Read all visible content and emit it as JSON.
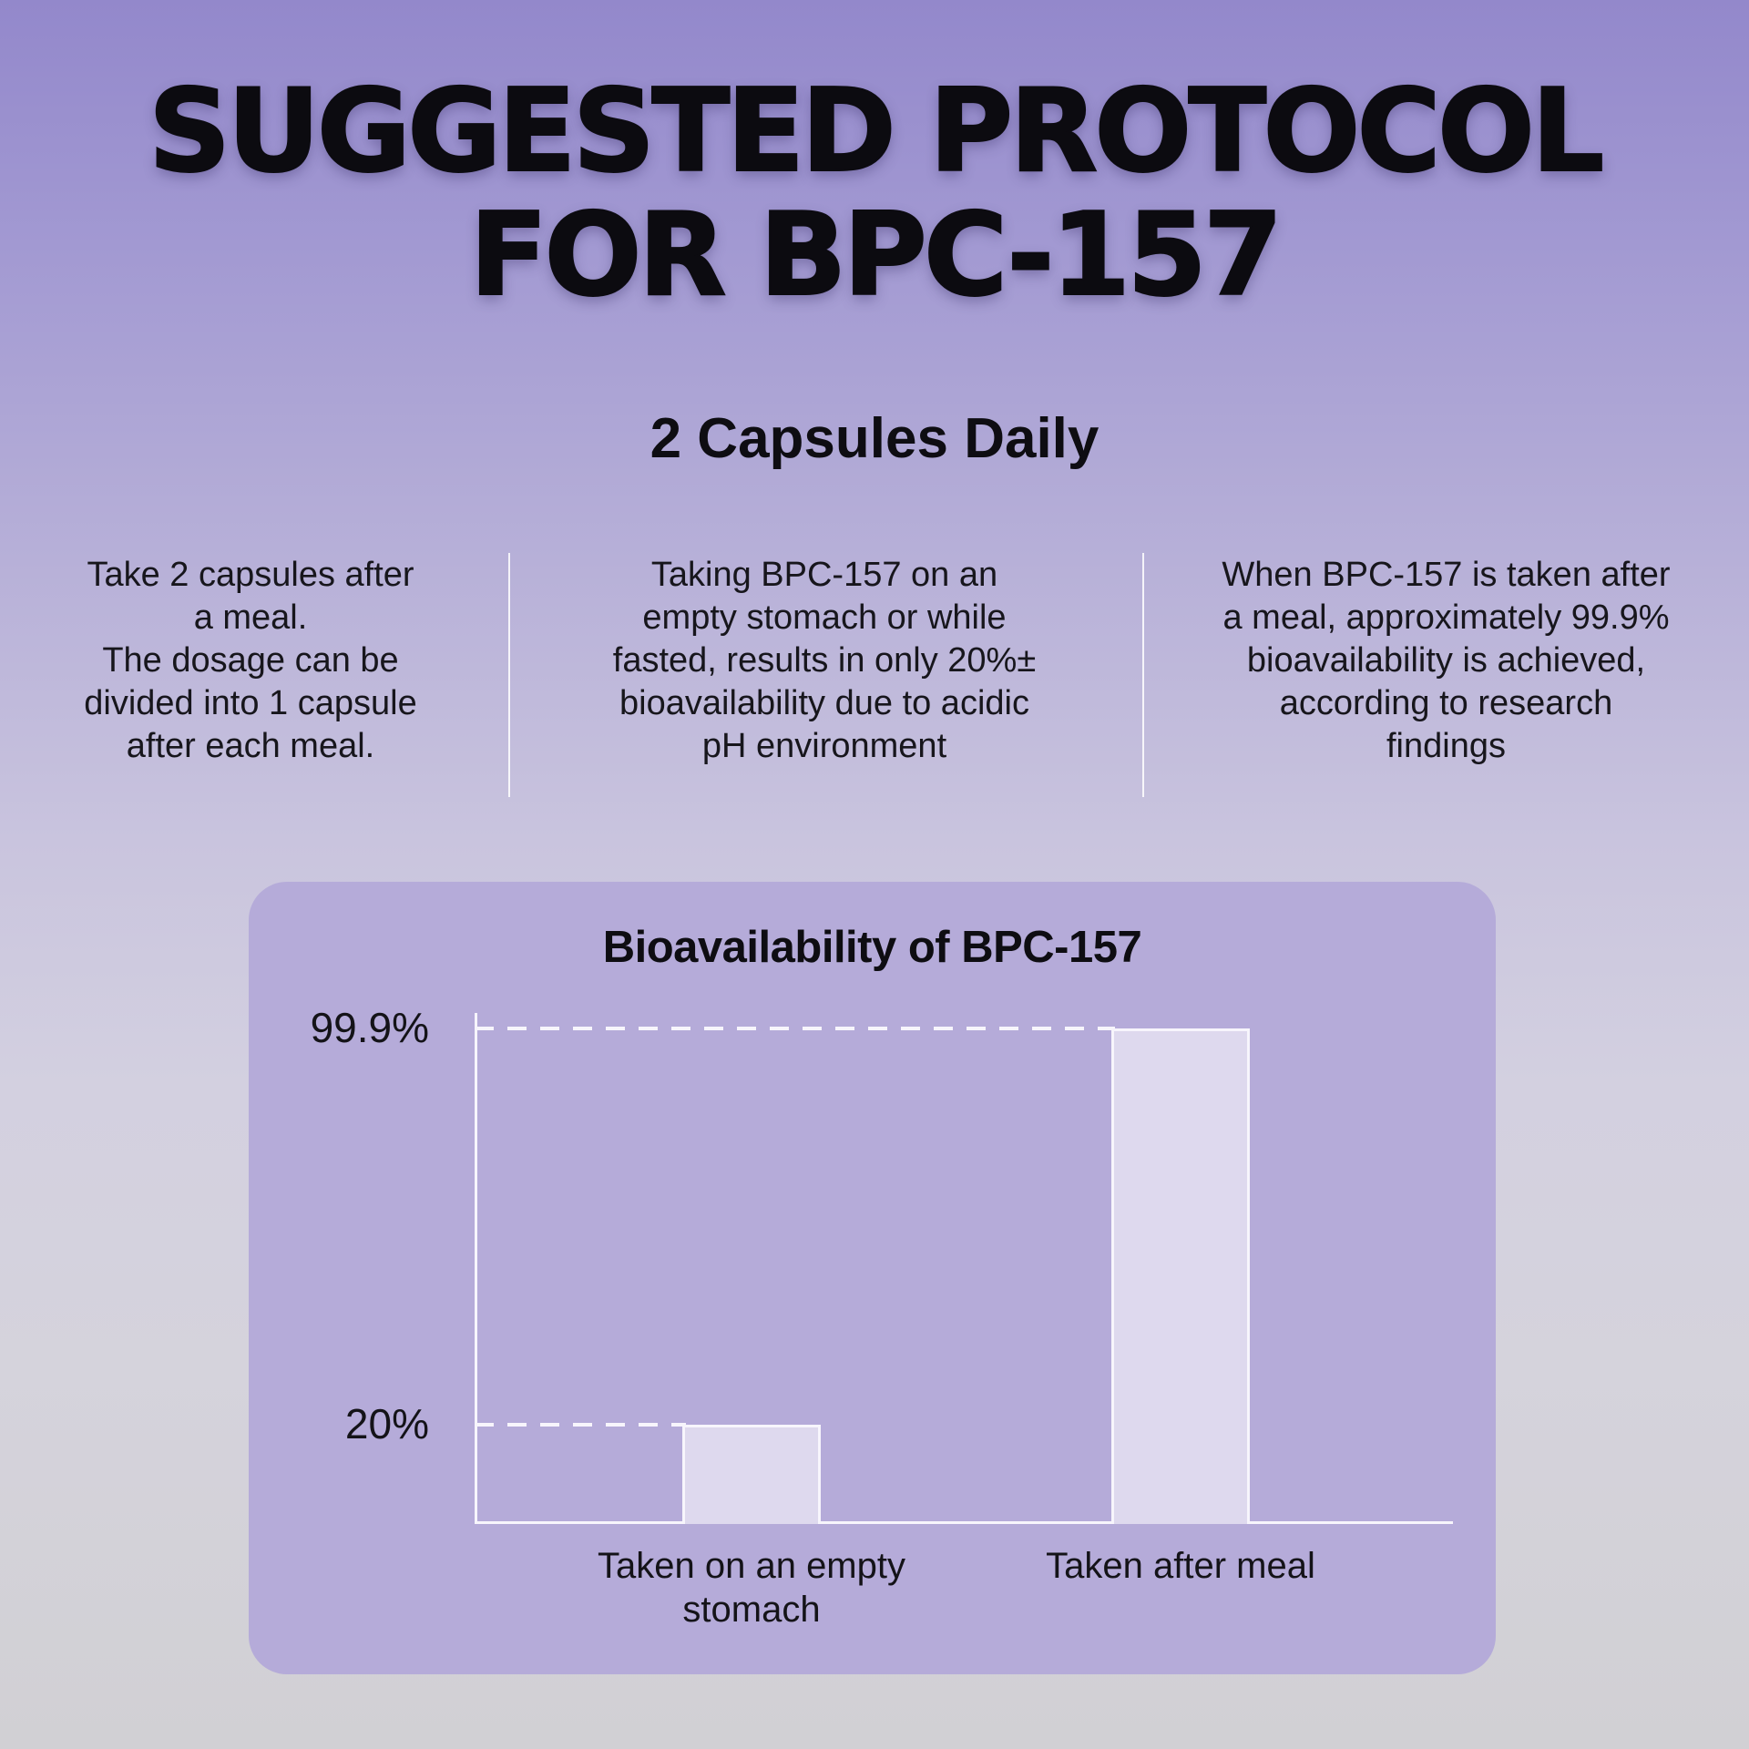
{
  "title": "SUGGESTED PROTOCOL\nFOR BPC-157",
  "subtitle": "2 Capsules Daily",
  "columns": [
    {
      "text": "Take 2 capsules after\na meal.\nThe dosage can be\ndivided into 1 capsule\nafter each meal."
    },
    {
      "text": "Taking BPC-157 on an\nempty stomach or while\nfasted, results in only 20%±\nbioavailability due to acidic\npH environment"
    },
    {
      "text": "When BPC-157 is taken after\na meal, approximately 99.9%\nbioavailability is achieved,\naccording to research\nfindings"
    }
  ],
  "colors": {
    "background_top": "#9388cb",
    "background_bottom": "#d1d0d4",
    "card": "#b5abd9",
    "bar_fill": "#ded9ee",
    "line": "#f7f5fc",
    "text": "#131218"
  },
  "chart_data": {
    "type": "bar",
    "title": "Bioavailability of BPC-157",
    "categories": [
      "Taken on an empty stomach",
      "Taken after meal"
    ],
    "values": [
      20,
      99.9
    ],
    "value_labels": [
      "20%",
      "99.9%"
    ],
    "xlabel": "",
    "ylabel": "",
    "ylim": [
      0,
      103
    ],
    "grid": "off",
    "legend": "none",
    "guide_lines": "white dashed line from y-axis to the top of each bar, labeled with the bar value on the left",
    "bar_color": "#ded9ee",
    "axis_color": "#f7f5fc"
  }
}
